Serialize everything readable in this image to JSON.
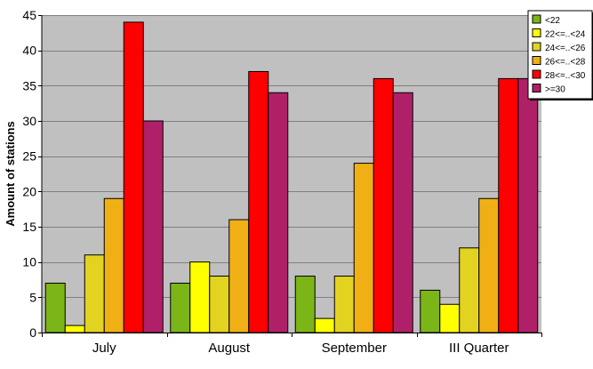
{
  "chart_data": {
    "type": "bar",
    "categories": [
      "July",
      "August",
      "September",
      "III Quarter"
    ],
    "series": [
      {
        "name": "<22",
        "color": "#7cb518",
        "values": [
          7,
          7,
          8,
          6
        ]
      },
      {
        "name": "22<=..<24",
        "color": "#ffff00",
        "values": [
          1,
          10,
          2,
          4
        ]
      },
      {
        "name": "24<=..<26",
        "color": "#e3d321",
        "values": [
          11,
          8,
          8,
          12
        ]
      },
      {
        "name": "26<=..<28",
        "color": "#f0b015",
        "values": [
          19,
          16,
          24,
          19
        ]
      },
      {
        "name": "28<=..<30",
        "color": "#ff0000",
        "values": [
          44,
          37,
          36,
          36
        ]
      },
      {
        "name": ">=30",
        "color": "#b02068",
        "values": [
          30,
          34,
          34,
          36
        ]
      }
    ],
    "ylabel": "Amount of stations",
    "xlabel": "",
    "ylim": [
      0,
      45
    ],
    "yticks": [
      0,
      5,
      10,
      15,
      20,
      25,
      30,
      35,
      40,
      45
    ],
    "grid": true,
    "legend": "top-right",
    "plot_background": "#c0c0c0"
  }
}
